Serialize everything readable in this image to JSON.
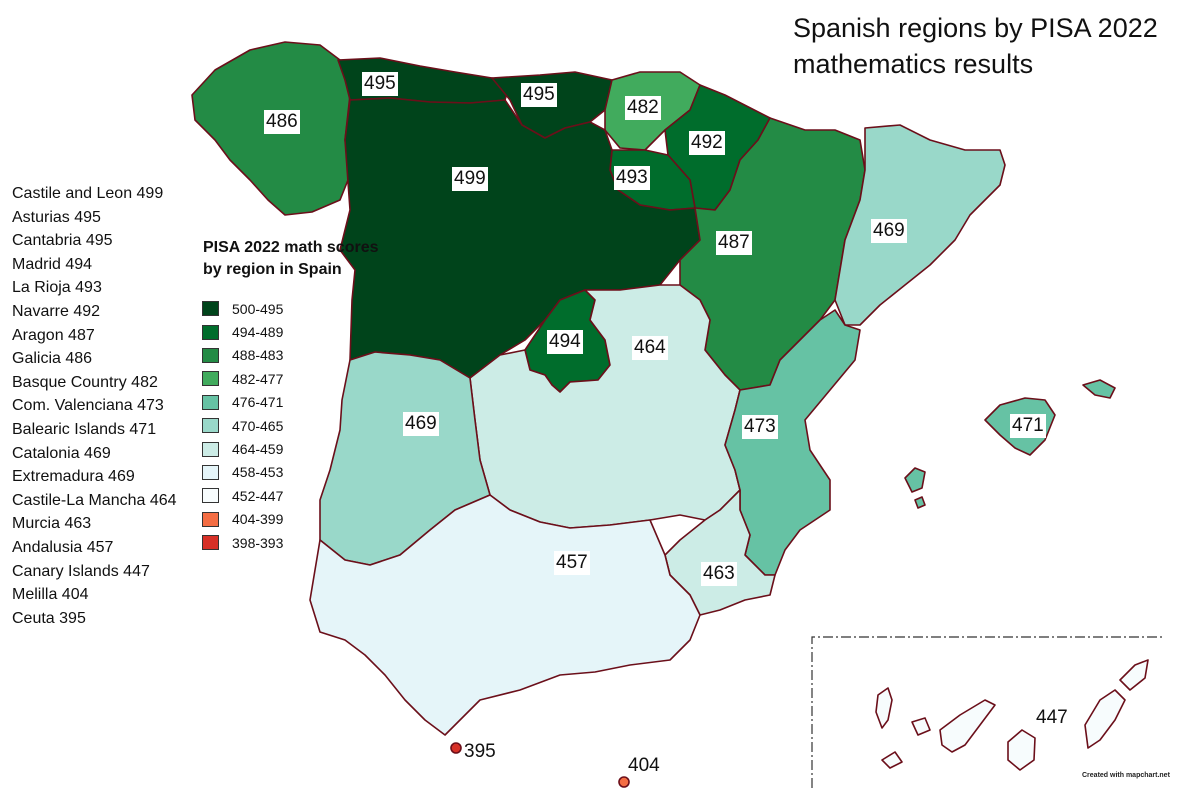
{
  "title_line1": "Spanish regions by PISA 2022",
  "title_line2": "mathematics results",
  "ranking": [
    "Castile and Leon 499",
    "Asturias 495",
    "Cantabria 495",
    "Madrid 494",
    "La Rioja 493",
    "Navarre 492",
    "Aragon 487",
    "Galicia 486",
    "Basque Country 482",
    "Com. Valenciana 473",
    "Balearic Islands 471",
    "Catalonia 469",
    "Extremadura 469",
    "Castile-La Mancha 464",
    "Murcia 463",
    "Andalusia 457",
    "Canary Islands 447",
    "Melilla 404",
    "Ceuta 395"
  ],
  "legend": {
    "title_line1": "PISA 2022 math scores",
    "title_line2": "by region in Spain",
    "items": [
      {
        "label": "500-495",
        "color": "#00441b"
      },
      {
        "label": "494-489",
        "color": "#006d2c"
      },
      {
        "label": "488-483",
        "color": "#238b45"
      },
      {
        "label": "482-477",
        "color": "#41ab5d"
      },
      {
        "label": "476-471",
        "color": "#66c2a4"
      },
      {
        "label": "470-465",
        "color": "#99d8c9"
      },
      {
        "label": "464-459",
        "color": "#ccece6"
      },
      {
        "label": "458-453",
        "color": "#e5f5f9"
      },
      {
        "label": "452-447",
        "color": "#f7fcfd"
      },
      {
        "label": "404-399",
        "color": "#f46d43"
      },
      {
        "label": "398-393",
        "color": "#d73027"
      }
    ]
  },
  "regions": {
    "galicia": {
      "value": "486",
      "color": "#238b45"
    },
    "asturias": {
      "value": "495",
      "color": "#00441b"
    },
    "cantabria": {
      "value": "495",
      "color": "#00441b"
    },
    "basque": {
      "value": "482",
      "color": "#41ab5d"
    },
    "navarre": {
      "value": "492",
      "color": "#006d2c"
    },
    "larioja": {
      "value": "493",
      "color": "#006d2c"
    },
    "castile_leon": {
      "value": "499",
      "color": "#00441b"
    },
    "aragon": {
      "value": "487",
      "color": "#238b45"
    },
    "catalonia": {
      "value": "469",
      "color": "#99d8c9"
    },
    "madrid": {
      "value": "494",
      "color": "#006d2c"
    },
    "castile_la_mancha": {
      "value": "464",
      "color": "#ccece6"
    },
    "extremadura": {
      "value": "469",
      "color": "#99d8c9"
    },
    "valencia": {
      "value": "473",
      "color": "#66c2a4"
    },
    "balearic": {
      "value": "471",
      "color": "#66c2a4"
    },
    "murcia": {
      "value": "463",
      "color": "#ccece6"
    },
    "andalusia": {
      "value": "457",
      "color": "#e5f5f9"
    },
    "canary": {
      "value": "447",
      "color": "#f7fcfd"
    },
    "ceuta": {
      "value": "395",
      "color": "#d73027"
    },
    "melilla": {
      "value": "404",
      "color": "#f46d43"
    }
  },
  "border_color": "#6b0f1a",
  "credit": "Created with mapchart.net"
}
